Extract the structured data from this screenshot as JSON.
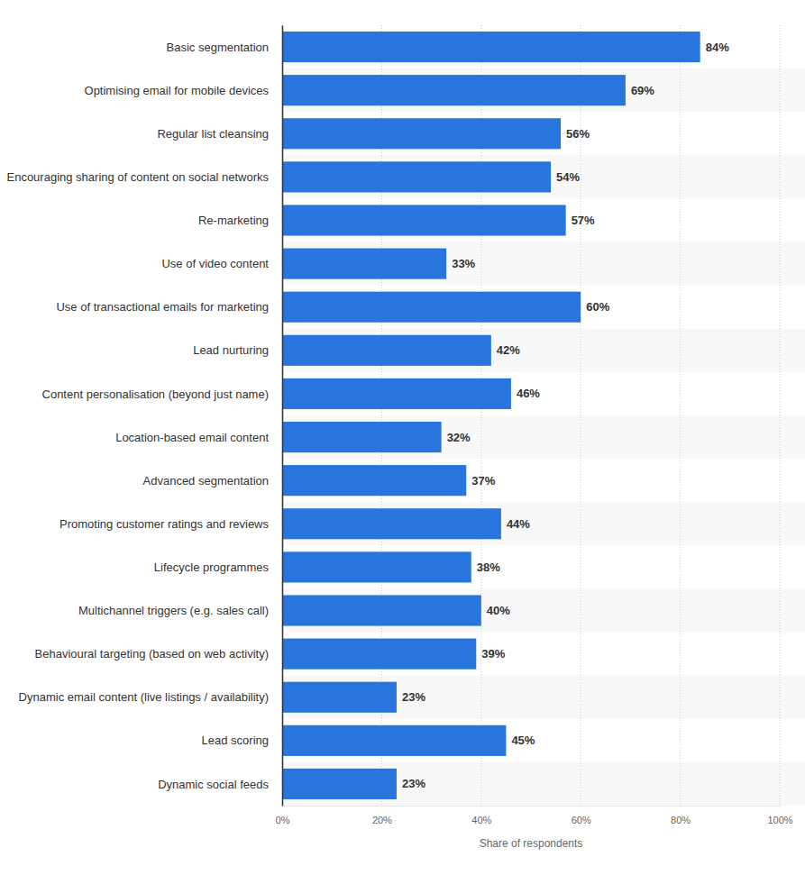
{
  "chart_data": {
    "type": "bar",
    "orientation": "horizontal",
    "categories": [
      "Basic segmentation",
      "Optimising email for mobile devices",
      "Regular list cleansing",
      "Encouraging sharing of content on social networks",
      "Re-marketing",
      "Use of video content",
      "Use of transactional emails for marketing",
      "Lead nurturing",
      "Content personalisation (beyond just name)",
      "Location-based email content",
      "Advanced segmentation",
      "Promoting customer ratings and reviews",
      "Lifecycle programmes",
      "Multichannel triggers (e.g. sales call)",
      "Behavioural targeting (based on web activity)",
      "Dynamic email content (live listings / availability)",
      "Lead scoring",
      "Dynamic social feeds"
    ],
    "values": [
      84,
      69,
      56,
      54,
      57,
      33,
      60,
      42,
      46,
      32,
      37,
      44,
      38,
      40,
      39,
      23,
      45,
      23
    ],
    "value_labels": [
      "84%",
      "69%",
      "56%",
      "54%",
      "57%",
      "33%",
      "60%",
      "42%",
      "46%",
      "32%",
      "37%",
      "44%",
      "38%",
      "40%",
      "39%",
      "23%",
      "45%",
      "23%"
    ],
    "color": "#2876dd",
    "xlabel": "Share of respondents",
    "xlim": [
      0,
      100
    ],
    "xticks": [
      {
        "value": 0,
        "label": "0%"
      },
      {
        "value": 20,
        "label": "20%"
      },
      {
        "value": 40,
        "label": "40%"
      },
      {
        "value": 60,
        "label": "60%"
      },
      {
        "value": 80,
        "label": "80%"
      },
      {
        "value": 100,
        "label": "100%"
      }
    ],
    "grid": true,
    "data_labels": true
  }
}
